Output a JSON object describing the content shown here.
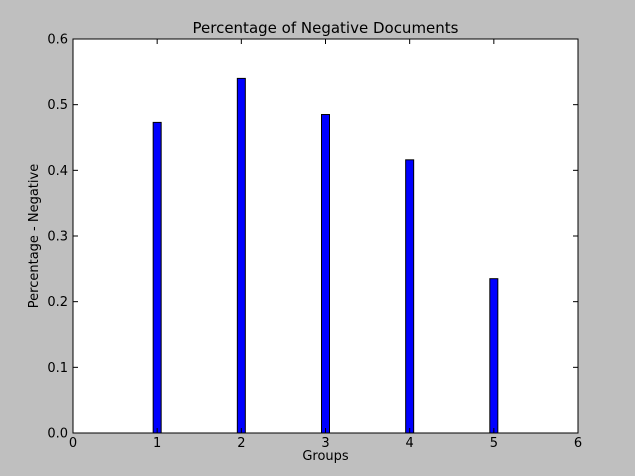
{
  "chart_data": {
    "type": "bar",
    "title": "Percentage of Negative Documents",
    "xlabel": "Groups",
    "ylabel": "Percentage - Negative",
    "x": [
      1,
      2,
      3,
      4,
      5
    ],
    "values": [
      0.473,
      0.54,
      0.485,
      0.416,
      0.235
    ],
    "xlim": [
      0,
      6
    ],
    "ylim": [
      0.0,
      0.6
    ],
    "xticks": [
      "0",
      "1",
      "2",
      "3",
      "4",
      "5",
      "6"
    ],
    "yticks": [
      "0.0",
      "0.1",
      "0.2",
      "0.3",
      "0.4",
      "0.5",
      "0.6"
    ],
    "grid": false,
    "bar_color": "#0000ff",
    "background_color": "#bfbfbf",
    "plot_background_color": "#ffffff"
  }
}
